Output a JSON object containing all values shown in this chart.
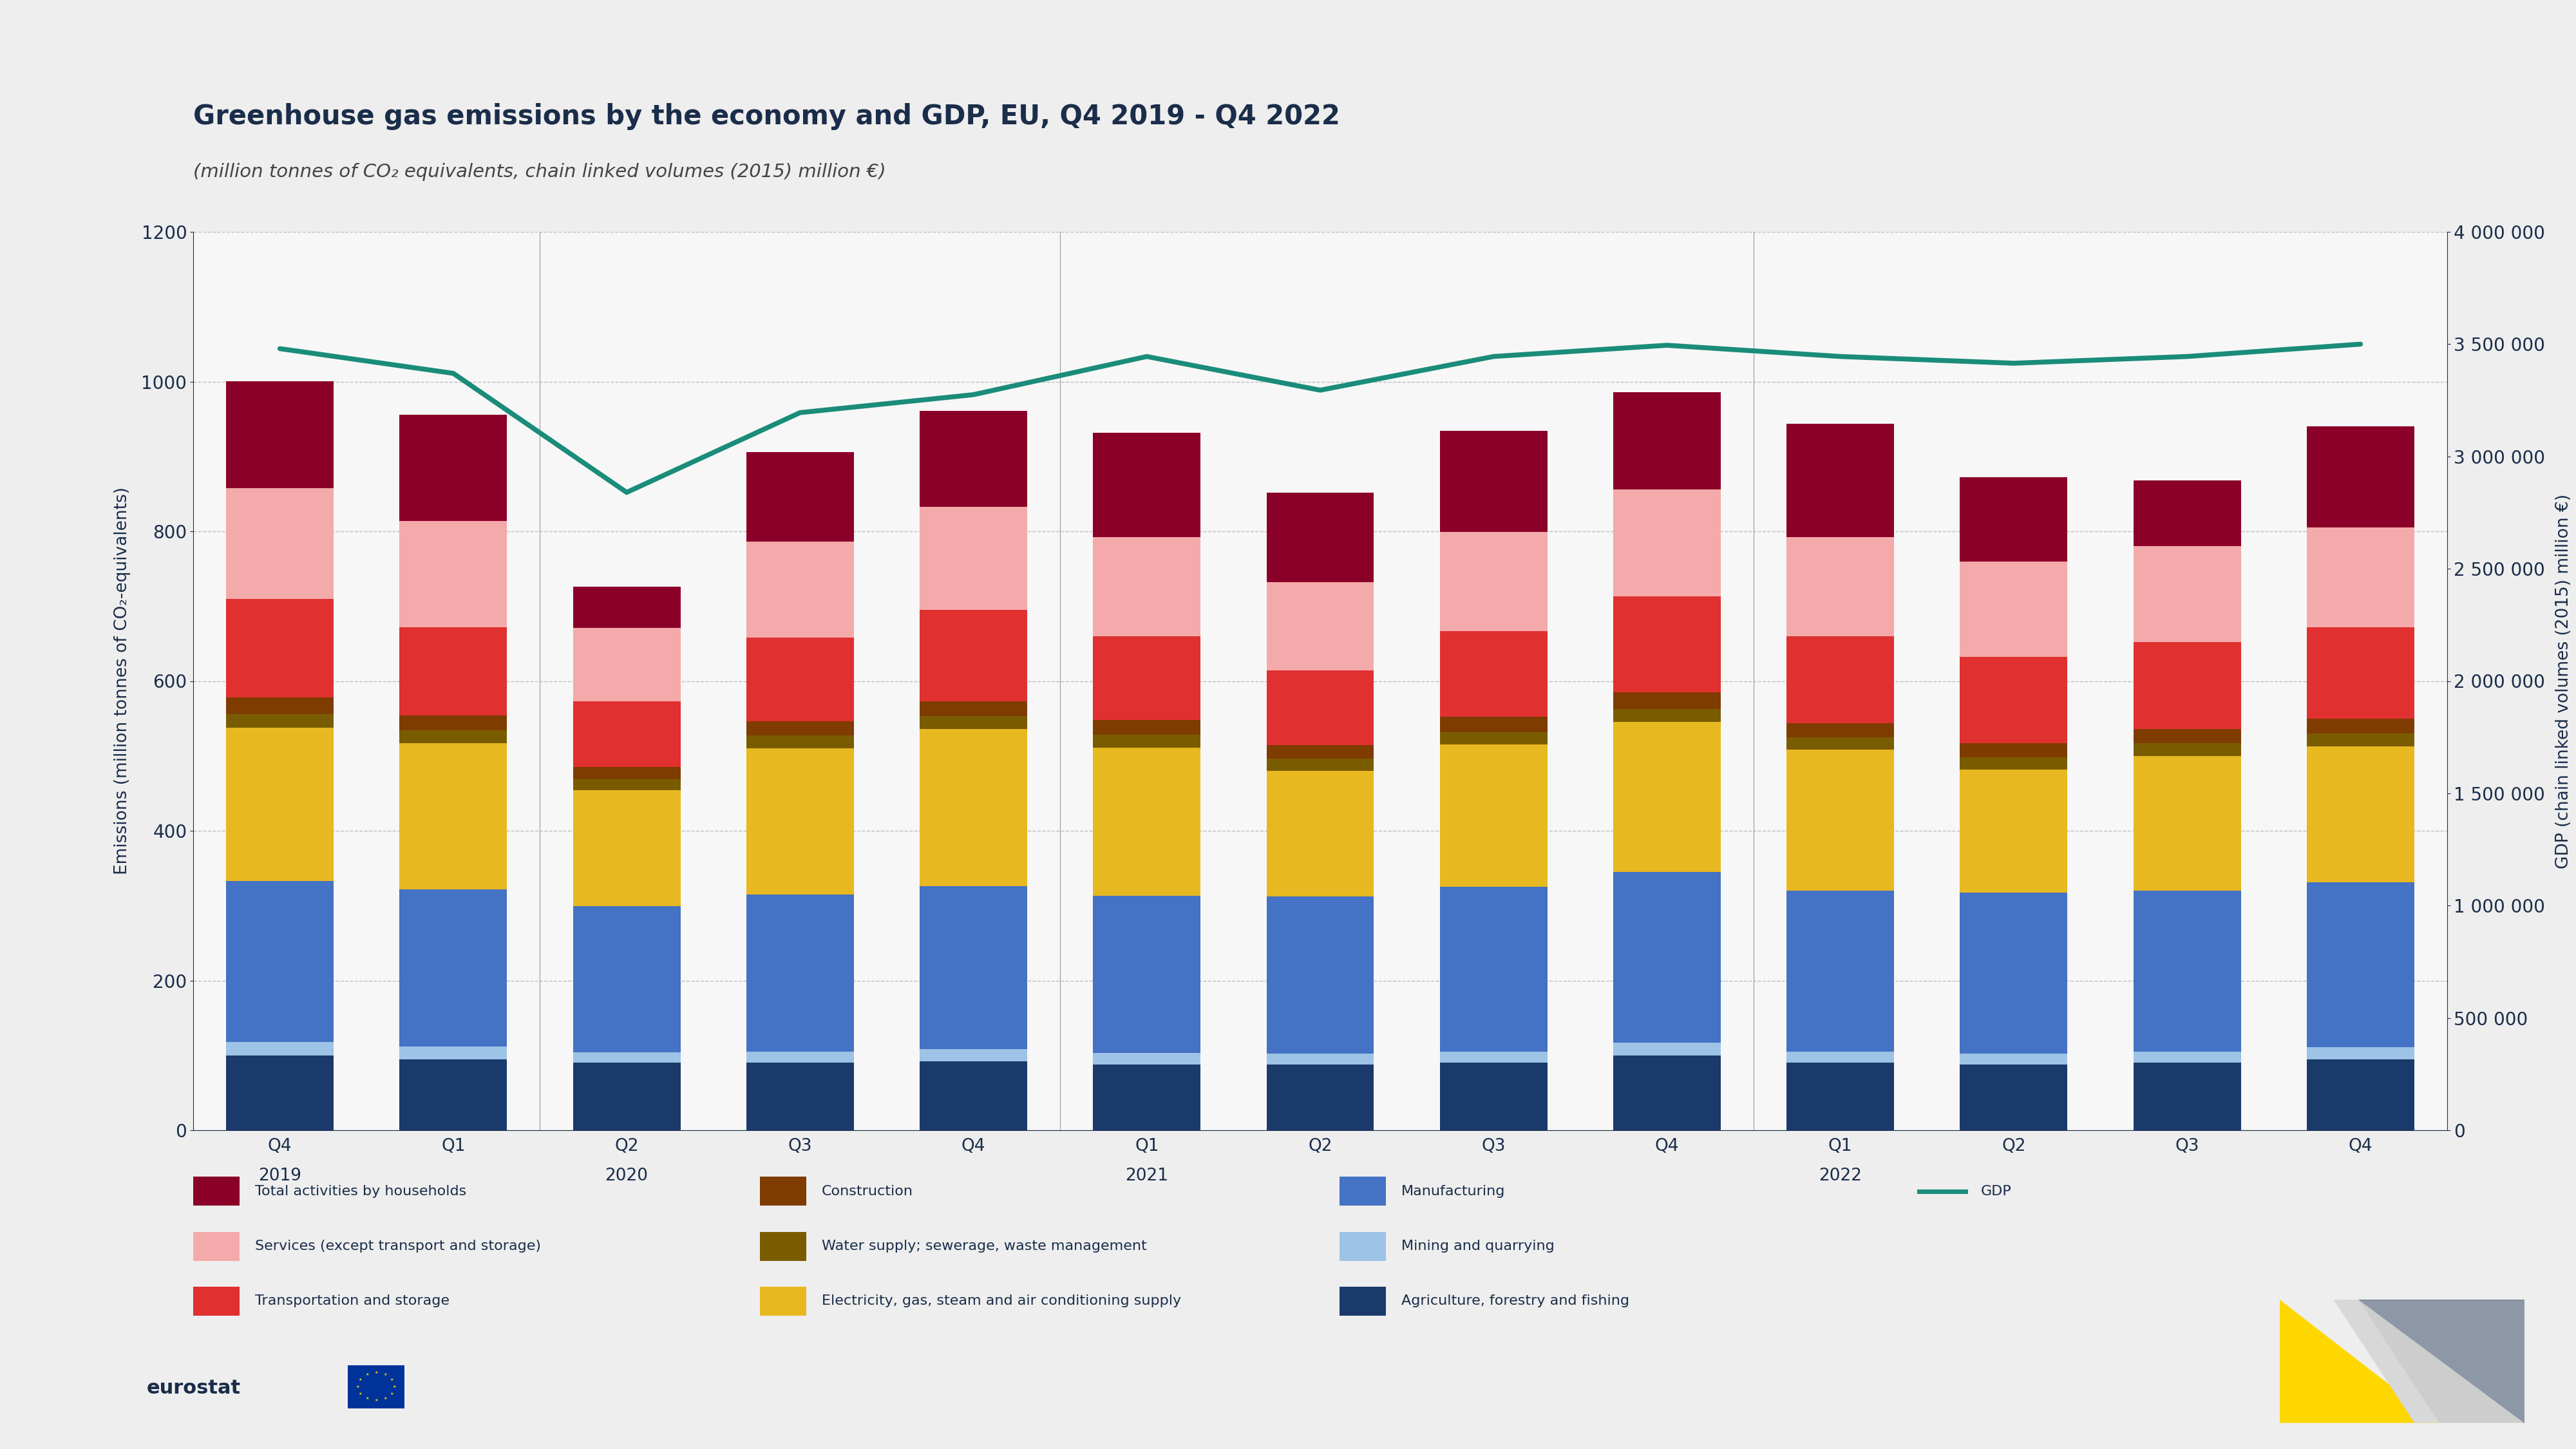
{
  "title": "Greenhouse gas emissions by the economy and GDP, EU, Q4 2019 - Q4 2022",
  "subtitle": "(million tonnes of CO₂ equivalents, chain linked volumes (2015) million €)",
  "background_color": "#eeeeee",
  "bar_area_bg": "#f7f7f7",
  "quarter_labels": [
    "Q4",
    "Q1",
    "Q2",
    "Q3",
    "Q4",
    "Q1",
    "Q2",
    "Q3",
    "Q4",
    "Q1",
    "Q2",
    "Q3",
    "Q4"
  ],
  "year_label_positions": {
    "0": "2019",
    "2": "2020",
    "5": "2021",
    "9": "2022"
  },
  "stack_order": [
    "Agriculture, forestry and fishing",
    "Mining and quarrying",
    "Manufacturing",
    "Electricity, gas, steam and air conditioning supply",
    "Water supply; sewerage, waste management",
    "Construction",
    "Transportation and storage",
    "Services (except transport and storage)",
    "Total activities by households"
  ],
  "segments": {
    "Agriculture, forestry and fishing": {
      "values": [
        100,
        95,
        90,
        90,
        92,
        88,
        88,
        90,
        100,
        90,
        88,
        90,
        95
      ],
      "color": "#1a3a6b"
    },
    "Mining and quarrying": {
      "values": [
        18,
        17,
        14,
        15,
        16,
        15,
        14,
        15,
        17,
        15,
        14,
        15,
        16
      ],
      "color": "#9dc3e6"
    },
    "Manufacturing": {
      "values": [
        215,
        210,
        195,
        210,
        218,
        210,
        210,
        220,
        228,
        215,
        215,
        215,
        220
      ],
      "color": "#4472c4"
    },
    "Electricity, gas, steam and air conditioning supply": {
      "values": [
        205,
        195,
        155,
        195,
        210,
        198,
        168,
        190,
        200,
        188,
        165,
        180,
        182
      ],
      "color": "#e8b820"
    },
    "Water supply; sewerage, waste management": {
      "values": [
        18,
        17,
        15,
        17,
        17,
        17,
        16,
        17,
        18,
        17,
        16,
        17,
        17
      ],
      "color": "#7a5c00"
    },
    "Construction": {
      "values": [
        22,
        20,
        16,
        19,
        20,
        20,
        18,
        20,
        22,
        19,
        19,
        19,
        20
      ],
      "color": "#7f3c00"
    },
    "Transportation and storage": {
      "values": [
        132,
        118,
        88,
        112,
        122,
        112,
        100,
        115,
        128,
        116,
        115,
        116,
        122
      ],
      "color": "#e03030"
    },
    "Services (except transport and storage)": {
      "values": [
        148,
        142,
        98,
        128,
        138,
        132,
        118,
        132,
        143,
        132,
        128,
        128,
        133
      ],
      "color": "#f4aaaa"
    },
    "Total activities by households": {
      "values": [
        142,
        142,
        55,
        120,
        128,
        140,
        120,
        135,
        130,
        152,
        112,
        88,
        135
      ],
      "color": "#8b0028"
    }
  },
  "gdp_values": [
    3480000,
    3370000,
    2840000,
    3195000,
    3275000,
    3445000,
    3295000,
    3445000,
    3495000,
    3445000,
    3415000,
    3445000,
    3500000
  ],
  "gdp_color": "#1a8c7a",
  "ylim_left": [
    0,
    1200
  ],
  "ylim_right": [
    0,
    4000000
  ],
  "yticks_left": [
    0,
    200,
    400,
    600,
    800,
    1000,
    1200
  ],
  "yticks_right": [
    0,
    500000,
    1000000,
    1500000,
    2000000,
    2500000,
    3000000,
    3500000,
    4000000
  ],
  "ylabel_left": "Emissions (million tonnes of CO₂-equivalents)",
  "ylabel_right": "GDP (chain linked volumes (2015) million €)",
  "legend_order": [
    "Total activities by households",
    "Construction",
    "Manufacturing",
    "GDP",
    "Services (except transport and storage)",
    "Water supply; sewerage, waste management",
    "Mining and quarrying",
    null,
    "Transportation and storage",
    "Electricity, gas, steam and air conditioning supply",
    "Agriculture, forestry and fishing",
    null
  ],
  "legend_items": [
    {
      "label": "Total activities by households",
      "color": "#8b0028",
      "type": "bar"
    },
    {
      "label": "Construction",
      "color": "#7f3c00",
      "type": "bar"
    },
    {
      "label": "Manufacturing",
      "color": "#4472c4",
      "type": "bar"
    },
    {
      "label": "GDP",
      "color": "#1a8c7a",
      "type": "line"
    },
    {
      "label": "Services (except transport and storage)",
      "color": "#f4aaaa",
      "type": "bar"
    },
    {
      "label": "Water supply; sewerage, waste management",
      "color": "#7a5c00",
      "type": "bar"
    },
    {
      "label": "Mining and quarrying",
      "color": "#9dc3e6",
      "type": "bar"
    },
    {
      "label": "Transportation and storage",
      "color": "#e03030",
      "type": "bar"
    },
    {
      "label": "Electricity, gas, steam and air conditioning supply",
      "color": "#e8b820",
      "type": "bar"
    },
    {
      "label": "Agriculture, forestry and fishing",
      "color": "#1a3a6b",
      "type": "bar"
    }
  ],
  "title_color": "#1a2d4a",
  "subtitle_color": "#444444",
  "tick_color": "#1a2d4a",
  "grid_color": "#b0b0b0",
  "bar_width": 0.62
}
